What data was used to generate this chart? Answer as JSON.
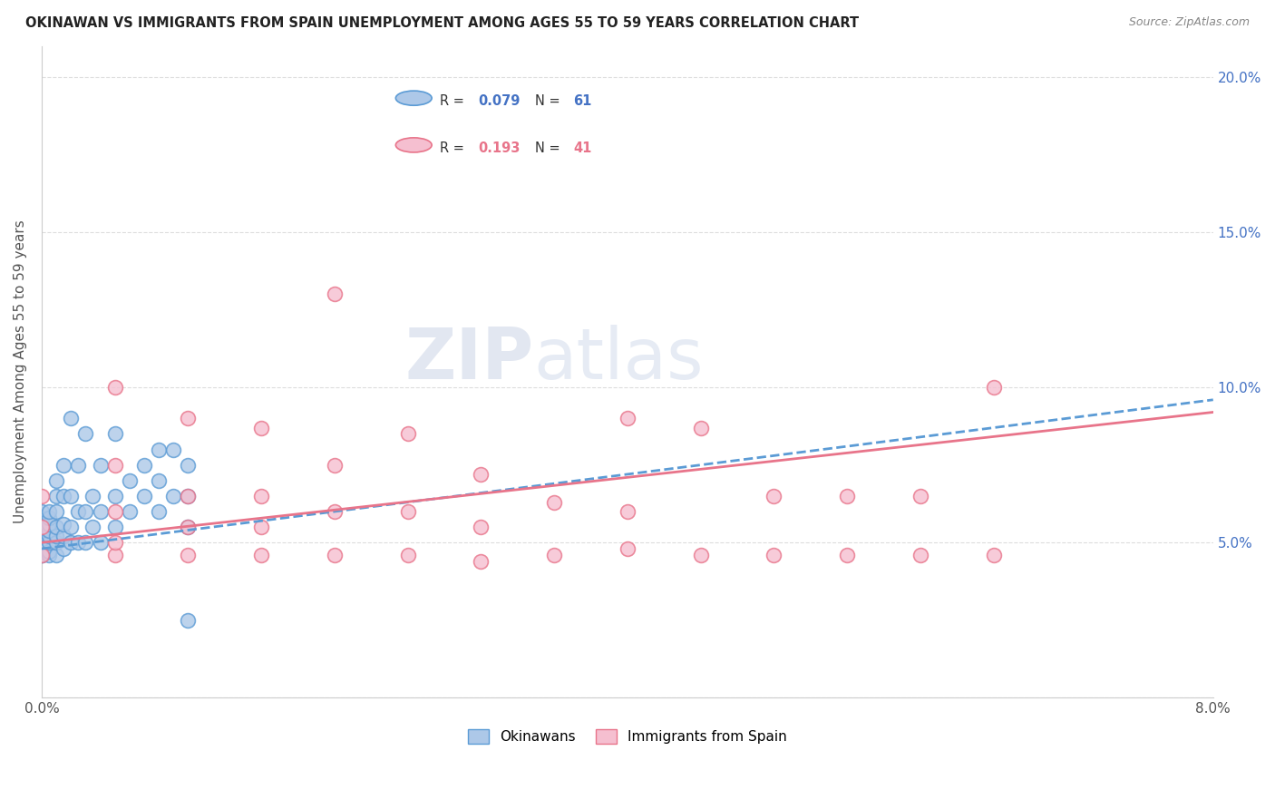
{
  "title": "OKINAWAN VS IMMIGRANTS FROM SPAIN UNEMPLOYMENT AMONG AGES 55 TO 59 YEARS CORRELATION CHART",
  "source": "Source: ZipAtlas.com",
  "ylabel": "Unemployment Among Ages 55 to 59 years",
  "xlim": [
    0.0,
    0.08
  ],
  "ylim": [
    0.0,
    0.21
  ],
  "xtick_positions": [
    0.0,
    0.01,
    0.02,
    0.03,
    0.04,
    0.05,
    0.06,
    0.07,
    0.08
  ],
  "xtick_labels": [
    "0.0%",
    "",
    "",
    "",
    "",
    "",
    "",
    "",
    "8.0%"
  ],
  "ytick_positions": [
    0.0,
    0.05,
    0.1,
    0.15,
    0.2
  ],
  "ytick_labels_right": [
    "",
    "5.0%",
    "10.0%",
    "15.0%",
    "20.0%"
  ],
  "okinawan_color": "#adc8e8",
  "okinawan_edge_color": "#5b9bd5",
  "spain_color": "#f5bfd0",
  "spain_edge_color": "#e8748a",
  "trend_okinawan_color": "#5b9bd5",
  "trend_spain_color": "#e8748a",
  "r_okinawan": 0.079,
  "n_okinawan": 61,
  "r_spain": 0.193,
  "n_spain": 41,
  "watermark_zip": "ZIP",
  "watermark_atlas": "atlas",
  "legend_r1": "R = ",
  "legend_v1": "0.079",
  "legend_n1": "N = ",
  "legend_nv1": "61",
  "legend_r2": "R = ",
  "legend_v2": "0.193",
  "legend_n2": "N = ",
  "legend_nv2": "41",
  "okinawan_x": [
    0.0,
    0.0,
    0.0,
    0.0,
    0.0,
    0.0,
    0.0,
    0.0,
    0.0,
    0.0,
    0.0005,
    0.0005,
    0.0005,
    0.0005,
    0.0005,
    0.0005,
    0.0005,
    0.0005,
    0.001,
    0.001,
    0.001,
    0.001,
    0.001,
    0.001,
    0.001,
    0.0015,
    0.0015,
    0.0015,
    0.0015,
    0.0015,
    0.002,
    0.002,
    0.002,
    0.002,
    0.0025,
    0.0025,
    0.0025,
    0.003,
    0.003,
    0.003,
    0.0035,
    0.0035,
    0.004,
    0.004,
    0.004,
    0.005,
    0.005,
    0.005,
    0.006,
    0.006,
    0.007,
    0.007,
    0.008,
    0.008,
    0.008,
    0.009,
    0.009,
    0.01,
    0.01,
    0.01,
    0.01
  ],
  "okinawan_y": [
    0.046,
    0.046,
    0.047,
    0.048,
    0.05,
    0.052,
    0.054,
    0.056,
    0.058,
    0.06,
    0.046,
    0.047,
    0.05,
    0.052,
    0.054,
    0.056,
    0.058,
    0.06,
    0.046,
    0.05,
    0.052,
    0.055,
    0.06,
    0.065,
    0.07,
    0.048,
    0.052,
    0.056,
    0.065,
    0.075,
    0.05,
    0.055,
    0.065,
    0.09,
    0.05,
    0.06,
    0.075,
    0.05,
    0.06,
    0.085,
    0.055,
    0.065,
    0.05,
    0.06,
    0.075,
    0.055,
    0.065,
    0.085,
    0.06,
    0.07,
    0.065,
    0.075,
    0.06,
    0.07,
    0.08,
    0.065,
    0.08,
    0.055,
    0.065,
    0.075,
    0.025
  ],
  "spain_x": [
    0.0,
    0.0,
    0.0,
    0.005,
    0.005,
    0.005,
    0.005,
    0.005,
    0.01,
    0.01,
    0.01,
    0.01,
    0.015,
    0.015,
    0.015,
    0.015,
    0.02,
    0.02,
    0.02,
    0.02,
    0.025,
    0.025,
    0.025,
    0.03,
    0.03,
    0.03,
    0.035,
    0.035,
    0.04,
    0.04,
    0.04,
    0.045,
    0.045,
    0.05,
    0.05,
    0.055,
    0.055,
    0.06,
    0.06,
    0.065,
    0.065
  ],
  "spain_y": [
    0.046,
    0.055,
    0.065,
    0.046,
    0.05,
    0.06,
    0.075,
    0.1,
    0.046,
    0.055,
    0.065,
    0.09,
    0.046,
    0.055,
    0.065,
    0.087,
    0.046,
    0.06,
    0.075,
    0.13,
    0.046,
    0.06,
    0.085,
    0.044,
    0.055,
    0.072,
    0.046,
    0.063,
    0.048,
    0.06,
    0.09,
    0.046,
    0.087,
    0.046,
    0.065,
    0.046,
    0.065,
    0.046,
    0.065,
    0.046,
    0.1
  ]
}
